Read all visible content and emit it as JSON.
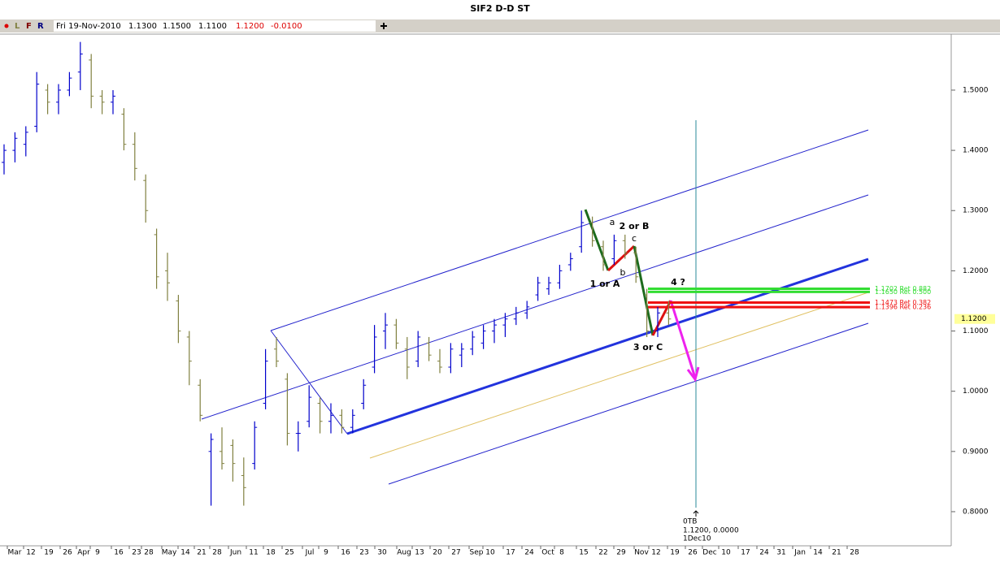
{
  "chart_data": {
    "type": "ohlc",
    "title": "SIF2 D-D ST",
    "header": {
      "flags": [
        "L",
        "F",
        "R"
      ],
      "date": "Fri 19-Nov-2010",
      "open": "1.1300",
      "high": "1.1500",
      "low": "1.1100",
      "close": "1.1200",
      "change": "-0.0100"
    },
    "up_color": "#0000cc",
    "down_color": "#808040",
    "bars": [
      [
        1.38,
        1.41,
        1.36,
        1.4
      ],
      [
        1.4,
        1.43,
        1.38,
        1.42
      ],
      [
        1.41,
        1.44,
        1.39,
        1.43
      ],
      [
        1.44,
        1.53,
        1.43,
        1.51
      ],
      [
        1.5,
        1.51,
        1.46,
        1.48
      ],
      [
        1.48,
        1.51,
        1.46,
        1.5
      ],
      [
        1.5,
        1.53,
        1.49,
        1.52
      ],
      [
        1.53,
        1.58,
        1.5,
        1.56
      ],
      [
        1.55,
        1.56,
        1.47,
        1.49
      ],
      [
        1.49,
        1.5,
        1.46,
        1.48
      ],
      [
        1.48,
        1.5,
        1.46,
        1.49
      ],
      [
        1.46,
        1.47,
        1.4,
        1.41
      ],
      [
        1.41,
        1.43,
        1.35,
        1.37
      ],
      [
        1.35,
        1.36,
        1.28,
        1.3
      ],
      [
        1.26,
        1.27,
        1.17,
        1.19
      ],
      [
        1.2,
        1.23,
        1.15,
        1.18
      ],
      [
        1.15,
        1.16,
        1.08,
        1.1
      ],
      [
        1.09,
        1.1,
        1.01,
        1.05
      ],
      [
        1.01,
        1.02,
        0.95,
        0.96
      ],
      [
        0.9,
        0.93,
        0.81,
        0.92
      ],
      [
        0.9,
        0.94,
        0.87,
        0.88
      ],
      [
        0.91,
        0.92,
        0.85,
        0.88
      ],
      [
        0.86,
        0.89,
        0.81,
        0.84
      ],
      [
        0.88,
        0.95,
        0.87,
        0.94
      ],
      [
        0.98,
        1.07,
        0.97,
        1.05
      ],
      [
        1.07,
        1.09,
        1.04,
        1.05
      ],
      [
        1.02,
        1.03,
        0.91,
        0.93
      ],
      [
        0.93,
        0.95,
        0.9,
        0.93
      ],
      [
        0.95,
        1.01,
        0.94,
        0.99
      ],
      [
        0.98,
        0.99,
        0.93,
        0.95
      ],
      [
        0.95,
        0.98,
        0.93,
        0.96
      ],
      [
        0.96,
        0.97,
        0.93,
        0.94
      ],
      [
        0.94,
        0.97,
        0.93,
        0.96
      ],
      [
        0.98,
        1.02,
        0.97,
        1.01
      ],
      [
        1.04,
        1.11,
        1.03,
        1.09
      ],
      [
        1.1,
        1.13,
        1.07,
        1.11
      ],
      [
        1.11,
        1.12,
        1.07,
        1.08
      ],
      [
        1.07,
        1.09,
        1.02,
        1.04
      ],
      [
        1.05,
        1.1,
        1.04,
        1.09
      ],
      [
        1.08,
        1.09,
        1.05,
        1.06
      ],
      [
        1.05,
        1.07,
        1.03,
        1.04
      ],
      [
        1.04,
        1.08,
        1.03,
        1.07
      ],
      [
        1.06,
        1.08,
        1.04,
        1.07
      ],
      [
        1.07,
        1.1,
        1.06,
        1.09
      ],
      [
        1.08,
        1.11,
        1.07,
        1.1
      ],
      [
        1.1,
        1.12,
        1.08,
        1.11
      ],
      [
        1.11,
        1.13,
        1.09,
        1.12
      ],
      [
        1.12,
        1.14,
        1.11,
        1.13
      ],
      [
        1.13,
        1.15,
        1.12,
        1.14
      ],
      [
        1.16,
        1.19,
        1.15,
        1.18
      ],
      [
        1.17,
        1.19,
        1.16,
        1.18
      ],
      [
        1.18,
        1.21,
        1.17,
        1.2
      ],
      [
        1.21,
        1.23,
        1.2,
        1.22
      ],
      [
        1.24,
        1.3,
        1.23,
        1.28
      ],
      [
        1.28,
        1.29,
        1.24,
        1.25
      ],
      [
        1.24,
        1.25,
        1.2,
        1.21
      ],
      [
        1.22,
        1.26,
        1.21,
        1.25
      ],
      [
        1.25,
        1.26,
        1.22,
        1.23
      ],
      [
        1.23,
        1.24,
        1.18,
        1.19
      ],
      [
        1.16,
        1.17,
        1.09,
        1.1
      ],
      [
        1.1,
        1.14,
        1.09,
        1.13
      ],
      [
        1.13,
        1.15,
        1.11,
        1.12
      ]
    ],
    "xtick_labels": [
      "Mar",
      "12",
      "19",
      "26",
      "Apr",
      "9",
      "16",
      "23",
      "28",
      "May",
      "14",
      "21",
      "28",
      "Jun",
      "11",
      "18",
      "25",
      "Jul",
      "9",
      "16",
      "23",
      "30",
      "Aug",
      "13",
      "20",
      "27",
      "Sep",
      "10",
      "17",
      "24",
      "Oct",
      "8",
      "15",
      "22",
      "29",
      "Nov",
      "12",
      "19",
      "26",
      "Dec",
      "10",
      "17",
      "24",
      "31",
      "Jan",
      "14",
      "21",
      "28"
    ],
    "ylim": [
      0.7433,
      1.593
    ],
    "yticks": [
      {
        "value": 0.8,
        "label": "0.8000"
      },
      {
        "value": 0.9,
        "label": "0.9000"
      },
      {
        "value": 1.0,
        "label": "1.0000"
      },
      {
        "value": 1.1,
        "label": "1.1000"
      },
      {
        "value": 1.2,
        "label": "1.2000"
      },
      {
        "value": 1.3,
        "label": "1.3000"
      },
      {
        "value": 1.4,
        "label": "1.4000"
      },
      {
        "value": 1.5,
        "label": "1.5000"
      }
    ],
    "last_price": {
      "value": 1.12,
      "label": "1.1200"
    },
    "fib_levels": [
      {
        "value": 1.1702,
        "label": "1.1702 Ret 0.882",
        "color": "#33dd33"
      },
      {
        "value": 1.165,
        "label": "1.1650 Ret 0.500",
        "color": "#33dd33"
      },
      {
        "value": 1.1473,
        "label": "1.1473 Ret 0.382",
        "color": "#ee1111"
      },
      {
        "value": 1.1396,
        "label": "1.1396 Ret 0.236",
        "color": "#ee1111"
      }
    ],
    "annotations": [
      "a",
      "b",
      "c",
      "1 or A",
      "2 or B",
      "3 or C",
      "4 ?"
    ],
    "cursor_info": [
      "0TB",
      "1.1200, 0.0000",
      "1Dec10"
    ]
  }
}
